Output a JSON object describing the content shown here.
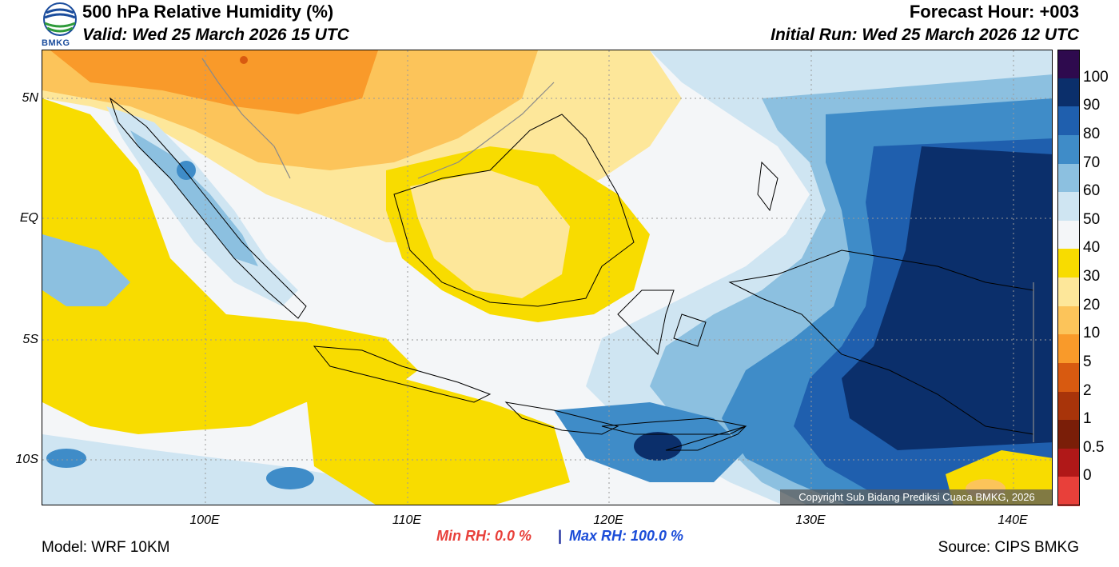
{
  "header": {
    "title": "500 hPa Relative Humidity (%)",
    "valid": "Valid: Wed 25 March 2026 15 UTC",
    "forecast_hour": "Forecast Hour: +003",
    "initial_run": "Initial Run: Wed 25 March 2026 12 UTC"
  },
  "logo": {
    "text": "BMKG"
  },
  "map": {
    "lat_labels": [
      "5N",
      "EQ",
      "5S",
      "10S"
    ],
    "lon_labels": [
      "100E",
      "110E",
      "120E",
      "130E",
      "140E"
    ],
    "copyright": "Copyright Sub Bidang Prediksi Cuaca BMKG, 2026"
  },
  "colorbar": {
    "labels": [
      "100",
      "90",
      "80",
      "70",
      "60",
      "50",
      "40",
      "30",
      "20",
      "10",
      "5",
      "2",
      "1",
      "0.5",
      "0"
    ],
    "colors": [
      "#2e0a4e",
      "#0b2f6b",
      "#1f5fae",
      "#3f8cc8",
      "#8cc0e0",
      "#cfe5f2",
      "#f4f6f8",
      "#f8dc00",
      "#fde79a",
      "#fcc45a",
      "#f99a2a",
      "#d85a10",
      "#a8340a",
      "#7a1e08",
      "#b01818",
      "#e8403a"
    ]
  },
  "footer": {
    "model": "Model: WRF 10KM",
    "min_rh": "Min RH:   0.0 %",
    "separator": "|",
    "max_rh": "Max RH: 100.0 %",
    "source": "Source: CIPS BMKG"
  }
}
